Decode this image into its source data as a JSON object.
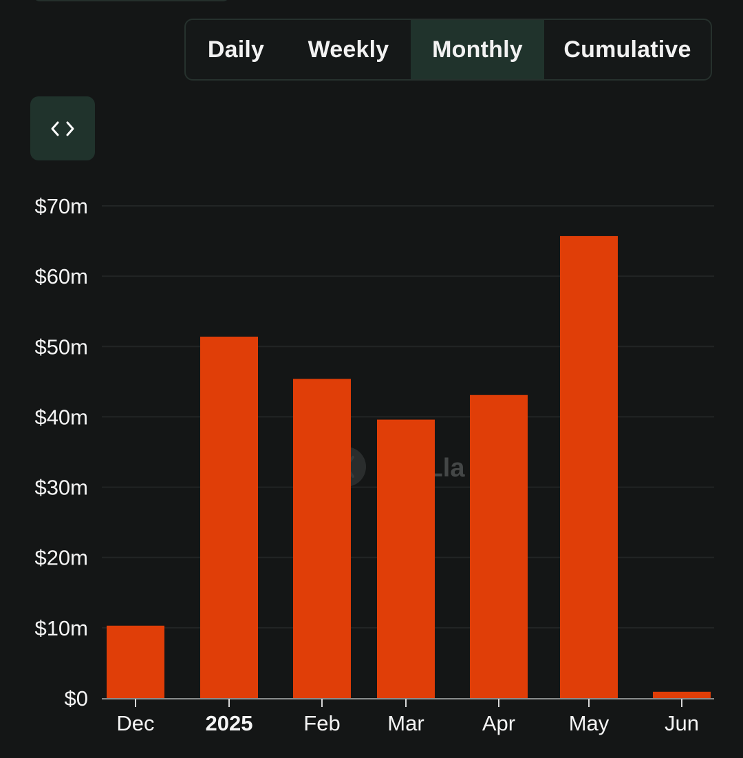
{
  "tabs": {
    "daily": "Daily",
    "weekly": "Weekly",
    "monthly": "Monthly",
    "cumulative": "Cumulative",
    "active": "Monthly"
  },
  "embed_icon": "code-brackets-icon",
  "watermark": {
    "text": "DefiLlama",
    "visible_text": "iLla",
    "logo_icon": "defillama-logo-icon"
  },
  "colors": {
    "background": "#141616",
    "bar": "#e03e08",
    "active_tab": "#20332c",
    "grid": "#222525",
    "axis": "#8a8d8d"
  },
  "chart_data": {
    "type": "bar",
    "title": "",
    "xlabel": "",
    "ylabel": "",
    "categories": [
      "Dec",
      "2025",
      "Feb",
      "Mar",
      "Apr",
      "May",
      "Jun"
    ],
    "bold_categories": [
      "2025"
    ],
    "values": [
      10.3,
      51.4,
      45.4,
      39.6,
      43.1,
      65.7,
      0.9
    ],
    "value_unit": "$m",
    "ylim": [
      0,
      70
    ],
    "yticks": [
      0,
      10,
      20,
      30,
      40,
      50,
      60,
      70
    ],
    "ytick_labels": [
      "$0",
      "$10m",
      "$20m",
      "$30m",
      "$40m",
      "$50m",
      "$60m",
      "$70m"
    ],
    "grid": true,
    "legend": "none"
  }
}
